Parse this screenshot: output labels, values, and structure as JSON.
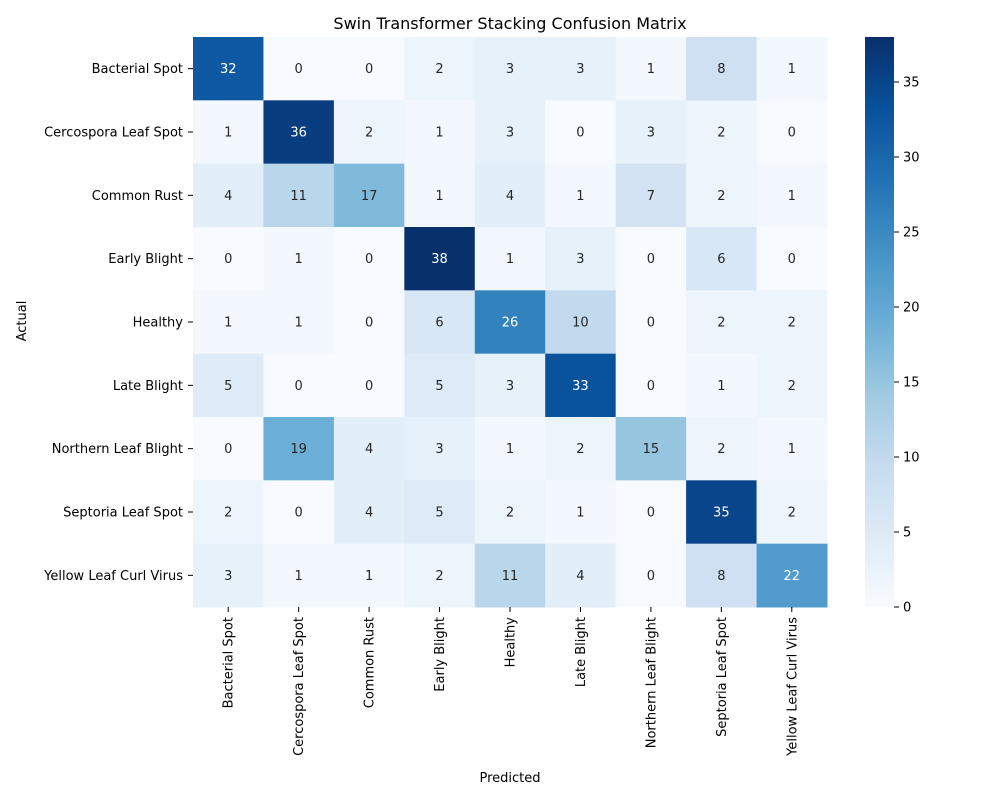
{
  "chart_data": {
    "type": "heatmap",
    "title": "Swin Transformer Stacking Confusion Matrix",
    "xlabel": "Predicted",
    "ylabel": "Actual",
    "x_categories": [
      "Bacterial Spot",
      "Cercospora Leaf Spot",
      "Common Rust",
      "Early Blight",
      "Healthy",
      "Late Blight",
      "Northern Leaf Blight",
      "Septoria Leaf Spot",
      "Yellow Leaf Curl Virus"
    ],
    "y_categories": [
      "Bacterial Spot",
      "Cercospora Leaf Spot",
      "Common Rust",
      "Early Blight",
      "Healthy",
      "Late Blight",
      "Northern Leaf Blight",
      "Septoria Leaf Spot",
      "Yellow Leaf Curl Virus"
    ],
    "values": [
      [
        32,
        0,
        0,
        2,
        3,
        3,
        1,
        8,
        1
      ],
      [
        1,
        36,
        2,
        1,
        3,
        0,
        3,
        2,
        0
      ],
      [
        4,
        11,
        17,
        1,
        4,
        1,
        7,
        2,
        1
      ],
      [
        0,
        1,
        0,
        38,
        1,
        3,
        0,
        6,
        0
      ],
      [
        1,
        1,
        0,
        6,
        26,
        10,
        0,
        2,
        2
      ],
      [
        5,
        0,
        0,
        5,
        3,
        33,
        0,
        1,
        2
      ],
      [
        0,
        19,
        4,
        3,
        1,
        2,
        15,
        2,
        1
      ],
      [
        2,
        0,
        4,
        5,
        2,
        1,
        0,
        35,
        2
      ],
      [
        3,
        1,
        1,
        2,
        11,
        4,
        0,
        8,
        22
      ]
    ],
    "colorbar": {
      "min": 0,
      "max": 38,
      "ticks": [
        0,
        5,
        10,
        15,
        20,
        25,
        30,
        35
      ]
    },
    "colormap": [
      "#f7fbff",
      "#deebf7",
      "#c6dbef",
      "#9ecae1",
      "#6baed6",
      "#4292c6",
      "#2171b5",
      "#08519c",
      "#08306b"
    ]
  }
}
